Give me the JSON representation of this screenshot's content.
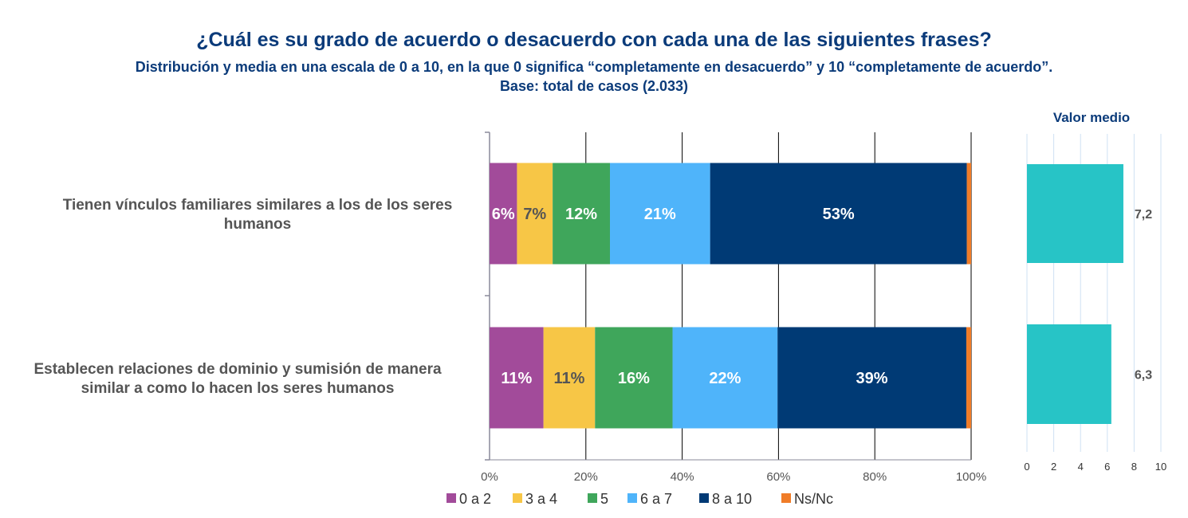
{
  "chart_data": [
    {
      "type": "bar",
      "orientation": "horizontal",
      "stacked": true,
      "percent": true,
      "title": "¿Cuál es su grado de acuerdo o desacuerdo con cada una de las siguientes frases?",
      "subtitle": "Distribución  y media en una escala de 0 a 10, en la que 0 significa “completamente en desacuerdo” y 10 “completamente de acuerdo”.",
      "base": "Base: total de casos (2.033)",
      "categories": [
        "Tienen vínculos familiares similares a los de los seres humanos",
        "Establecen relaciones de dominio y sumisión de manera similar a como lo hacen los seres humanos"
      ],
      "category_lines": [
        [
          "Tienen vínculos familiares similares a los de los seres",
          "humanos"
        ],
        [
          "Establecen relaciones de dominio y sumisión de manera",
          "similar a como lo hacen los seres humanos"
        ]
      ],
      "series": [
        {
          "name": "0 a 2",
          "color": "#a24b9a",
          "label_color": "#ffffff",
          "values": [
            5.7,
            11.2
          ],
          "labels": [
            "6%",
            "11%"
          ]
        },
        {
          "name": "3 a 4",
          "color": "#f7c646",
          "label_color": "#555555",
          "values": [
            7.4,
            10.7
          ],
          "labels": [
            "7%",
            "11%"
          ]
        },
        {
          "name": "5",
          "color": "#3fa65b",
          "label_color": "#ffffff",
          "values": [
            11.9,
            16.1
          ],
          "labels": [
            "12%",
            "16%"
          ]
        },
        {
          "name": "6 a 7",
          "color": "#4fb4fa",
          "label_color": "#ffffff",
          "values": [
            20.8,
            21.8
          ],
          "labels": [
            "21%",
            "22%"
          ]
        },
        {
          "name": "8 a 10",
          "color": "#003a75",
          "label_color": "#ffffff",
          "values": [
            53.3,
            39.2
          ],
          "labels": [
            "53%",
            "39%"
          ]
        },
        {
          "name": "Ns/Nc",
          "color": "#f07c28",
          "label_color": "#ffffff",
          "values": [
            0.9,
            1.0
          ],
          "labels": [
            "",
            ""
          ]
        }
      ],
      "xlim": [
        0,
        100
      ],
      "xticks": [
        "0%",
        "20%",
        "40%",
        "60%",
        "80%",
        "100%"
      ],
      "grid": true,
      "legend": "bottom"
    },
    {
      "type": "bar",
      "orientation": "horizontal",
      "title": "Valor medio",
      "categories": [
        "Tienen vínculos familiares similares a los de los seres humanos",
        "Establecen relaciones de dominio y sumisión de manera similar a como lo hacen los seres humanos"
      ],
      "values": [
        7.2,
        6.3
      ],
      "labels": [
        "7,2",
        "6,3"
      ],
      "color": "#27c4c6",
      "xlim": [
        0,
        10
      ],
      "xticks": [
        "0",
        "2",
        "4",
        "6",
        "8",
        "10"
      ],
      "grid": true
    }
  ]
}
